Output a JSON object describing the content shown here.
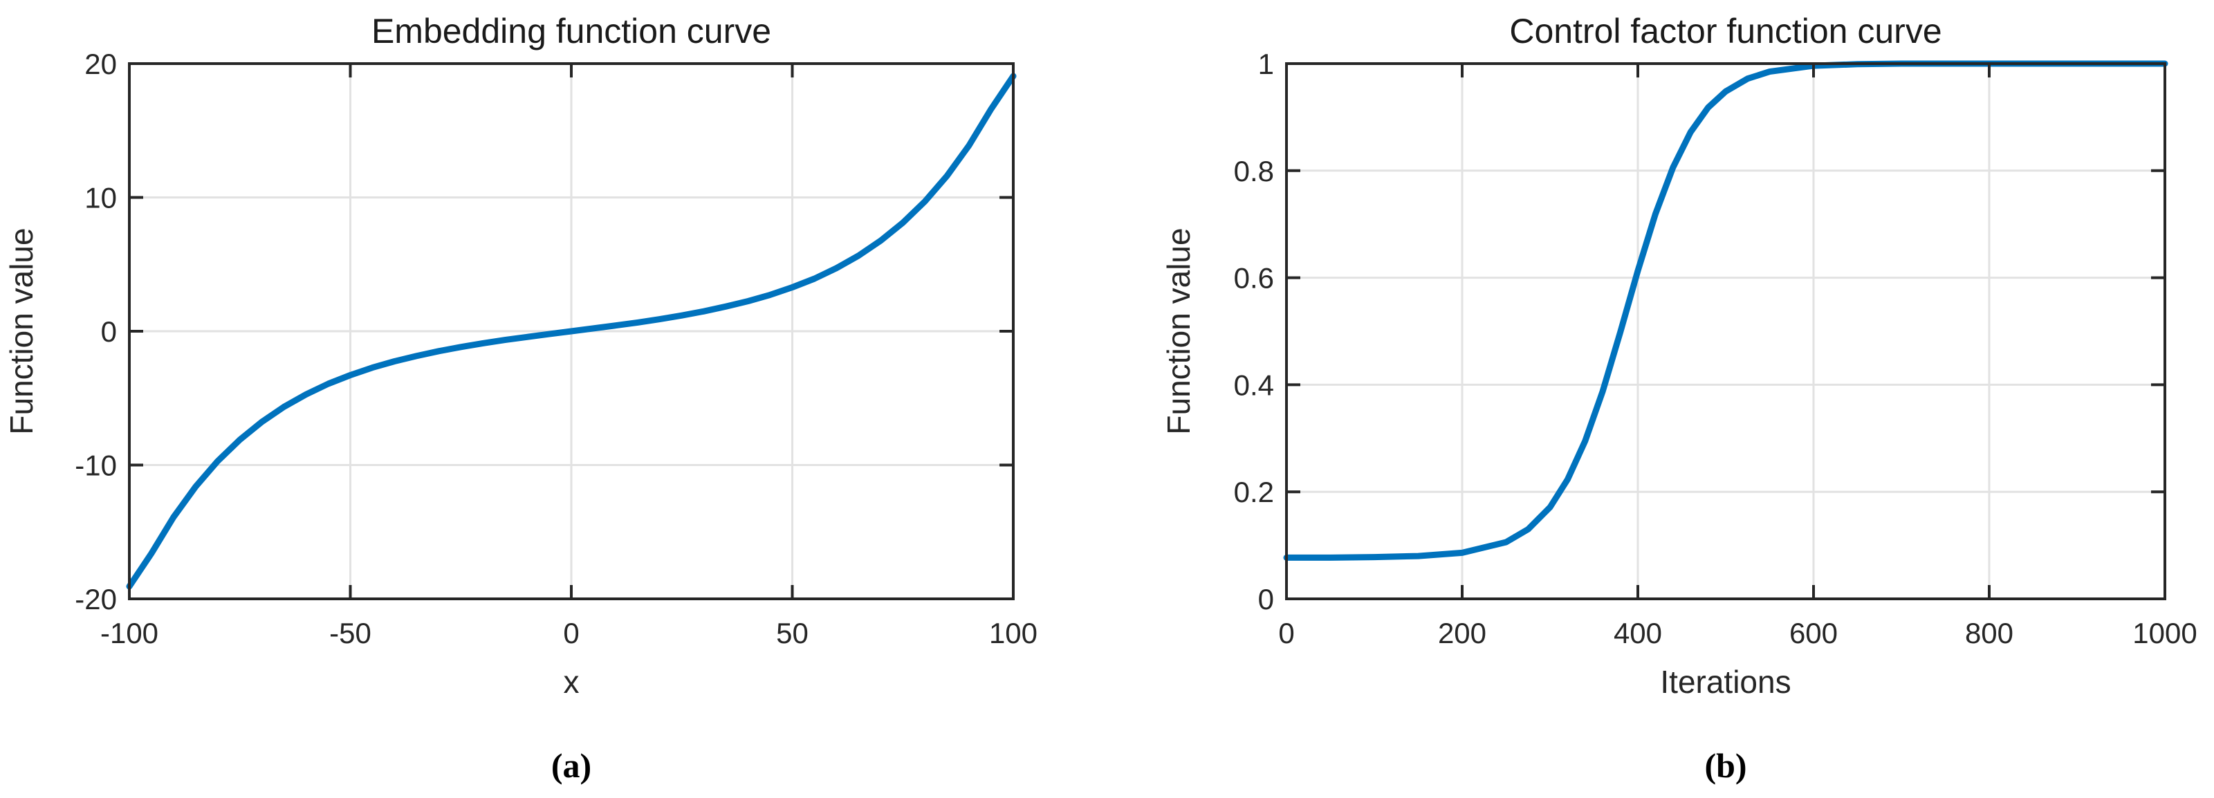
{
  "figure": {
    "captions": {
      "a": "(a)",
      "b": "(b)"
    },
    "colors": {
      "line": "#0072BD",
      "axis": "#262626",
      "grid": "#E2E2E2",
      "text": "#262626",
      "title": "#1A1A1A",
      "background": "#FFFFFF"
    }
  },
  "chart_data": [
    {
      "id": "a",
      "type": "line",
      "title": "Embedding function curve",
      "xlabel": "x",
      "ylabel": "Function value",
      "xlim": [
        -100,
        100
      ],
      "ylim": [
        -20,
        20
      ],
      "grid": true,
      "legend": null,
      "xticks": {
        "values": [
          -100,
          -50,
          0,
          50,
          100
        ],
        "labels": [
          "-100",
          "-50",
          "0",
          "50",
          "100"
        ]
      },
      "yticks": {
        "values": [
          -20,
          -10,
          0,
          10,
          20
        ],
        "labels": [
          "-20",
          "-10",
          "0",
          "10",
          "20"
        ]
      },
      "series": [
        {
          "name": "embedding function",
          "x": [
            -100,
            -95,
            -90,
            -85,
            -80,
            -75,
            -70,
            -65,
            -60,
            -55,
            -50,
            -45,
            -40,
            -35,
            -30,
            -25,
            -20,
            -15,
            -10,
            -5,
            0,
            5,
            10,
            15,
            20,
            25,
            30,
            35,
            40,
            45,
            50,
            55,
            60,
            65,
            70,
            75,
            80,
            85,
            90,
            95,
            100
          ],
          "y": [
            -19.07,
            -16.61,
            -13.89,
            -11.61,
            -9.7,
            -8.11,
            -6.77,
            -5.65,
            -4.72,
            -3.93,
            -3.28,
            -2.72,
            -2.25,
            -1.85,
            -1.49,
            -1.18,
            -0.9,
            -0.65,
            -0.43,
            -0.21,
            0,
            0.21,
            0.43,
            0.65,
            0.9,
            1.18,
            1.49,
            1.85,
            2.25,
            2.72,
            3.28,
            3.93,
            4.72,
            5.65,
            6.77,
            8.11,
            9.7,
            11.61,
            13.89,
            16.61,
            19.07
          ]
        }
      ]
    },
    {
      "id": "b",
      "type": "line",
      "title": "Control factor function curve",
      "xlabel": "Iterations",
      "ylabel": "Function value",
      "xlim": [
        0,
        1000
      ],
      "ylim": [
        0,
        1
      ],
      "grid": true,
      "legend": null,
      "xticks": {
        "values": [
          0,
          200,
          400,
          600,
          800,
          1000
        ],
        "labels": [
          "0",
          "200",
          "400",
          "600",
          "800",
          "1000"
        ]
      },
      "yticks": {
        "values": [
          0,
          0.2,
          0.4,
          0.6,
          0.8,
          1
        ],
        "labels": [
          "0",
          "0.2",
          "0.4",
          "0.6",
          "0.8",
          "1"
        ]
      },
      "series": [
        {
          "name": "control factor function",
          "x": [
            0,
            50,
            100,
            150,
            200,
            250,
            275,
            300,
            320,
            340,
            360,
            380,
            400,
            420,
            440,
            460,
            480,
            500,
            525,
            550,
            600,
            650,
            700,
            750,
            800,
            850,
            900,
            950,
            1000
          ],
          "y": [
            0.077,
            0.077,
            0.078,
            0.08,
            0.086,
            0.106,
            0.13,
            0.171,
            0.223,
            0.295,
            0.388,
            0.498,
            0.613,
            0.719,
            0.806,
            0.872,
            0.918,
            0.948,
            0.972,
            0.985,
            0.996,
            0.999,
            1,
            1,
            1,
            1,
            1,
            1,
            1
          ]
        }
      ]
    }
  ]
}
